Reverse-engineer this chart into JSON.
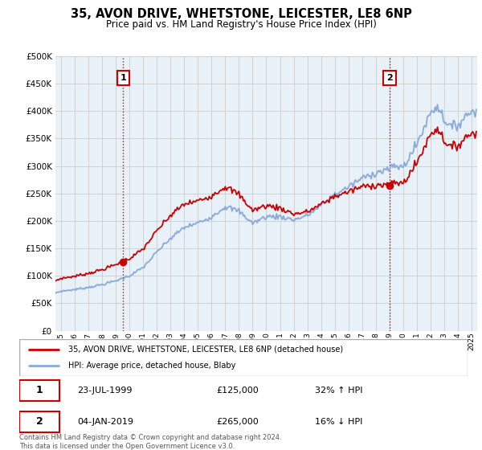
{
  "title": "35, AVON DRIVE, WHETSTONE, LEICESTER, LE8 6NP",
  "subtitle": "Price paid vs. HM Land Registry's House Price Index (HPI)",
  "ylim": [
    0,
    500000
  ],
  "yticks": [
    0,
    50000,
    100000,
    150000,
    200000,
    250000,
    300000,
    350000,
    400000,
    450000,
    500000
  ],
  "xlim_start": 1994.6,
  "xlim_end": 2025.4,
  "sale1_x": 1999.55,
  "sale1_y": 125000,
  "sale1_label": "23-JUL-1999",
  "sale1_price": "£125,000",
  "sale1_hpi": "32% ↑ HPI",
  "sale2_x": 2019.01,
  "sale2_y": 265000,
  "sale2_label": "04-JAN-2019",
  "sale2_price": "£265,000",
  "sale2_hpi": "16% ↓ HPI",
  "legend_house_label": "35, AVON DRIVE, WHETSTONE, LEICESTER, LE8 6NP (detached house)",
  "legend_hpi_label": "HPI: Average price, detached house, Blaby",
  "footer": "Contains HM Land Registry data © Crown copyright and database right 2024.\nThis data is licensed under the Open Government Licence v3.0.",
  "house_color": "#cc0000",
  "hpi_color": "#88aadd",
  "vline_color": "#cc0000",
  "grid_color": "#cccccc",
  "plot_bg": "#e8f0f8",
  "fig_bg": "#ffffff",
  "xtick_years": [
    1995,
    1996,
    1997,
    1998,
    1999,
    2000,
    2001,
    2002,
    2003,
    2004,
    2005,
    2006,
    2007,
    2008,
    2009,
    2010,
    2011,
    2012,
    2013,
    2014,
    2015,
    2016,
    2017,
    2018,
    2019,
    2020,
    2021,
    2022,
    2023,
    2024,
    2025
  ]
}
